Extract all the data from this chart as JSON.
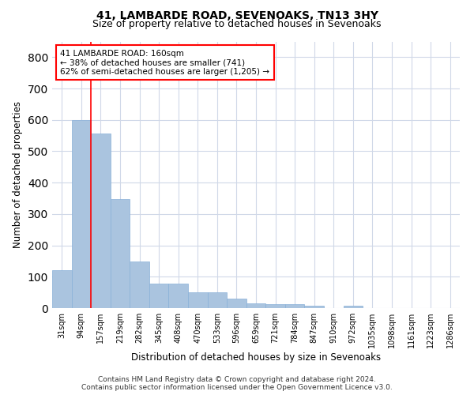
{
  "title1": "41, LAMBARDE ROAD, SEVENOAKS, TN13 3HY",
  "title2": "Size of property relative to detached houses in Sevenoaks",
  "xlabel": "Distribution of detached houses by size in Sevenoaks",
  "ylabel": "Number of detached properties",
  "footer1": "Contains HM Land Registry data © Crown copyright and database right 2024.",
  "footer2": "Contains public sector information licensed under the Open Government Licence v3.0.",
  "bin_labels": [
    "31sqm",
    "94sqm",
    "157sqm",
    "219sqm",
    "282sqm",
    "345sqm",
    "408sqm",
    "470sqm",
    "533sqm",
    "596sqm",
    "659sqm",
    "721sqm",
    "784sqm",
    "847sqm",
    "910sqm",
    "972sqm",
    "1035sqm",
    "1098sqm",
    "1161sqm",
    "1223sqm",
    "1286sqm"
  ],
  "bar_values": [
    120,
    600,
    557,
    347,
    148,
    78,
    78,
    50,
    50,
    30,
    15,
    13,
    13,
    8,
    0,
    8,
    0,
    0,
    0,
    0,
    0
  ],
  "bar_color": "#aac4df",
  "bar_edge_color": "#88b0d8",
  "grid_color": "#d0d8e8",
  "annotation_text": "41 LAMBARDE ROAD: 160sqm\n← 38% of detached houses are smaller (741)\n62% of semi-detached houses are larger (1,205) →",
  "annotation_box_color": "white",
  "annotation_box_edge_color": "red",
  "vline_color": "red",
  "vline_linewidth": 1.2,
  "ylim": [
    0,
    850
  ],
  "yticks": [
    0,
    100,
    200,
    300,
    400,
    500,
    600,
    700,
    800
  ],
  "background_color": "white",
  "title_fontsize": 10,
  "subtitle_fontsize": 9,
  "axis_label_fontsize": 8.5,
  "tick_fontsize": 7,
  "annotation_fontsize": 7.5,
  "footer_fontsize": 6.5
}
